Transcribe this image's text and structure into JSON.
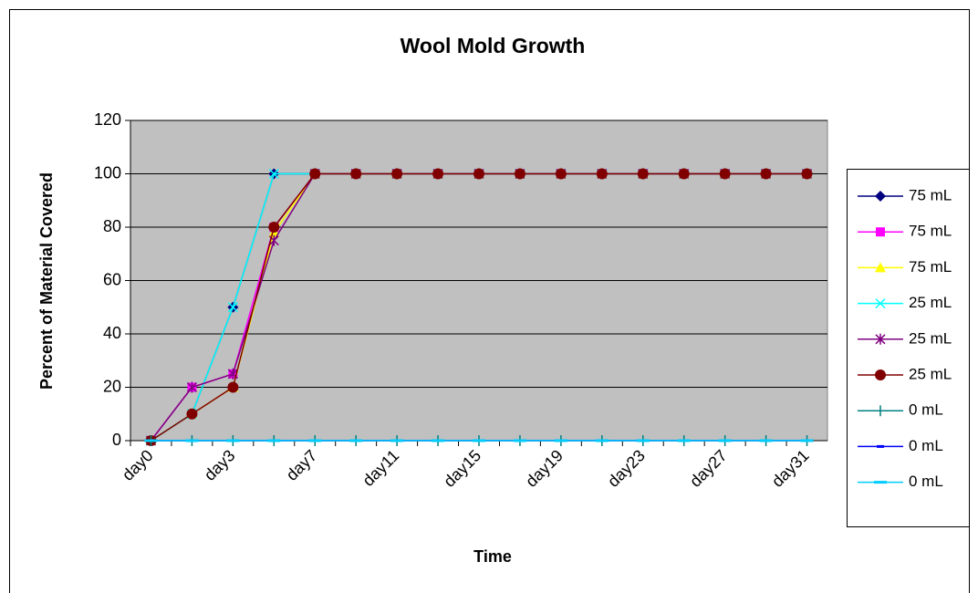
{
  "chart_data": {
    "type": "line",
    "title": "Wool Mold Growth",
    "x_label": "Time",
    "y_label": "Percent of Material Covered",
    "categories": [
      "day0",
      null,
      "day3",
      null,
      "day7",
      null,
      "day11",
      null,
      "day15",
      null,
      "day19",
      null,
      "day23",
      null,
      "day27",
      null,
      "day31"
    ],
    "ylim": [
      0,
      120
    ],
    "yticks": [
      0,
      20,
      40,
      60,
      80,
      100,
      120
    ],
    "grid": true,
    "legend": "right",
    "series": [
      {
        "name": "75 mL",
        "color": "#000080",
        "marker": "diamond",
        "values": [
          0,
          10,
          50,
          100,
          100,
          100,
          100,
          100,
          100,
          100,
          100,
          100,
          100,
          100,
          100,
          100,
          100
        ]
      },
      {
        "name": "75 mL",
        "color": "#ff00ff",
        "marker": "square",
        "values": [
          0,
          20,
          25,
          80,
          100,
          100,
          100,
          100,
          100,
          100,
          100,
          100,
          100,
          100,
          100,
          100,
          100
        ]
      },
      {
        "name": "75 mL",
        "color": "#ffff00",
        "marker": "triangle",
        "values": [
          0,
          10,
          20,
          78,
          100,
          100,
          100,
          100,
          100,
          100,
          100,
          100,
          100,
          100,
          100,
          100,
          100
        ]
      },
      {
        "name": "25 mL",
        "color": "#00ffff",
        "marker": "x",
        "values": [
          0,
          10,
          50,
          100,
          100,
          100,
          100,
          100,
          100,
          100,
          100,
          100,
          100,
          100,
          100,
          100,
          100
        ]
      },
      {
        "name": "25 mL",
        "color": "#800080",
        "marker": "star",
        "values": [
          0,
          20,
          25,
          75,
          100,
          100,
          100,
          100,
          100,
          100,
          100,
          100,
          100,
          100,
          100,
          100,
          100
        ]
      },
      {
        "name": "25 mL",
        "color": "#800000",
        "marker": "circle",
        "values": [
          0,
          10,
          20,
          80,
          100,
          100,
          100,
          100,
          100,
          100,
          100,
          100,
          100,
          100,
          100,
          100,
          100
        ]
      },
      {
        "name": "0 mL",
        "color": "#008080",
        "marker": "plus",
        "values": [
          0,
          0,
          0,
          0,
          0,
          0,
          0,
          0,
          0,
          0,
          0,
          0,
          0,
          0,
          0,
          0,
          0
        ]
      },
      {
        "name": "0 mL",
        "color": "#0000ff",
        "marker": "dash",
        "values": [
          0,
          0,
          0,
          0,
          0,
          0,
          0,
          0,
          0,
          0,
          0,
          0,
          0,
          0,
          0,
          0,
          0
        ]
      },
      {
        "name": "0 mL",
        "color": "#00ccff",
        "marker": "longdash",
        "values": [
          0,
          0,
          0,
          0,
          0,
          0,
          0,
          0,
          0,
          0,
          0,
          0,
          0,
          0,
          0,
          0,
          0
        ]
      }
    ]
  }
}
